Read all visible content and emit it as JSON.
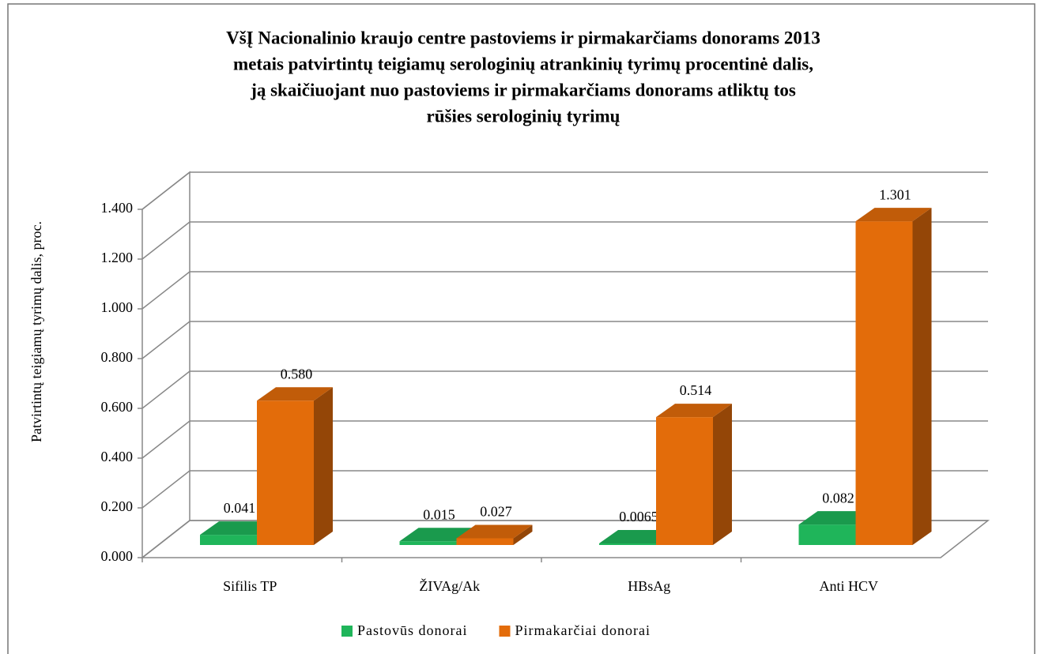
{
  "chart_data": {
    "type": "bar3d",
    "title": [
      "VšĮ Nacionalinio kraujo centre pastoviems ir pirmakarčiams donorams 2013",
      "metais patvirtintų teigiamų serologinių atrankinių tyrimų procentinė dalis,",
      "ją skaičiuojant nuo pastoviems ir pirmakarčiams  donorams atliktų tos",
      "rūšies serologinių tyrimų"
    ],
    "y_label": "Patvirtintų teigiamų tyrimų dalis, proc.",
    "categories": [
      "Sifilis TP",
      "ŽIVAg/Ak",
      "HBsAg",
      "Anti HCV"
    ],
    "series": [
      {
        "name": "Pastovūs donorai",
        "color": "#1fb55a",
        "values": [
          0.041,
          0.015,
          0.0065,
          0.082
        ],
        "value_labels": [
          "0.041",
          "0.015",
          "0.0065",
          "0.082"
        ]
      },
      {
        "name": "Pirmakarčiai donorai",
        "color": "#e36c0a",
        "values": [
          0.58,
          0.027,
          0.514,
          1.301
        ],
        "value_labels": [
          "0.580",
          "0.027",
          "0.514",
          "1.301"
        ]
      }
    ],
    "ylim": [
      0,
      1.4
    ],
    "yticks": [
      {
        "value": 0,
        "label": "0.000"
      },
      {
        "value": 0.2,
        "label": "0.200"
      },
      {
        "value": 0.4,
        "label": "0.400"
      },
      {
        "value": 0.6,
        "label": "0.600"
      },
      {
        "value": 0.8,
        "label": "0.800"
      },
      {
        "value": 1,
        "label": "1.000"
      },
      {
        "value": 1.2,
        "label": "1.200"
      },
      {
        "value": 1.4,
        "label": "1.400"
      }
    ],
    "grid": true,
    "legend": "bottom"
  }
}
